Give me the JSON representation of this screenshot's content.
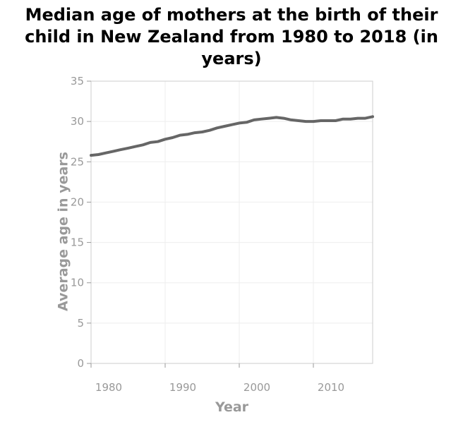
{
  "chart_data": {
    "type": "line",
    "title": "Median age of mothers at the birth of their child in New Zealand from 1980 to 2018 (in years)",
    "xlabel": "Year",
    "ylabel": "Average age in years",
    "xlim": [
      1980,
      2018
    ],
    "ylim": [
      0,
      35
    ],
    "x_ticks": [
      1980,
      1990,
      2000,
      2010
    ],
    "y_ticks": [
      0,
      5,
      10,
      15,
      20,
      25,
      30,
      35
    ],
    "grid": true,
    "legend": "none",
    "line_color": "#666666",
    "series": [
      {
        "x": [
          1980,
          1981,
          1982,
          1983,
          1984,
          1985,
          1986,
          1987,
          1988,
          1989,
          1990,
          1991,
          1992,
          1993,
          1994,
          1995,
          1996,
          1997,
          1998,
          1999,
          2000,
          2001,
          2002,
          2003,
          2004,
          2005,
          2006,
          2007,
          2008,
          2009,
          2010,
          2011,
          2012,
          2013,
          2014,
          2015,
          2016,
          2017,
          2018
        ],
        "values": [
          25.8,
          25.9,
          26.1,
          26.3,
          26.5,
          26.7,
          26.9,
          27.1,
          27.4,
          27.5,
          27.8,
          28.0,
          28.3,
          28.4,
          28.6,
          28.7,
          28.9,
          29.2,
          29.4,
          29.6,
          29.8,
          29.9,
          30.2,
          30.3,
          30.4,
          30.5,
          30.4,
          30.2,
          30.1,
          30.0,
          30.0,
          30.1,
          30.1,
          30.1,
          30.3,
          30.3,
          30.4,
          30.4,
          30.6
        ]
      }
    ]
  }
}
